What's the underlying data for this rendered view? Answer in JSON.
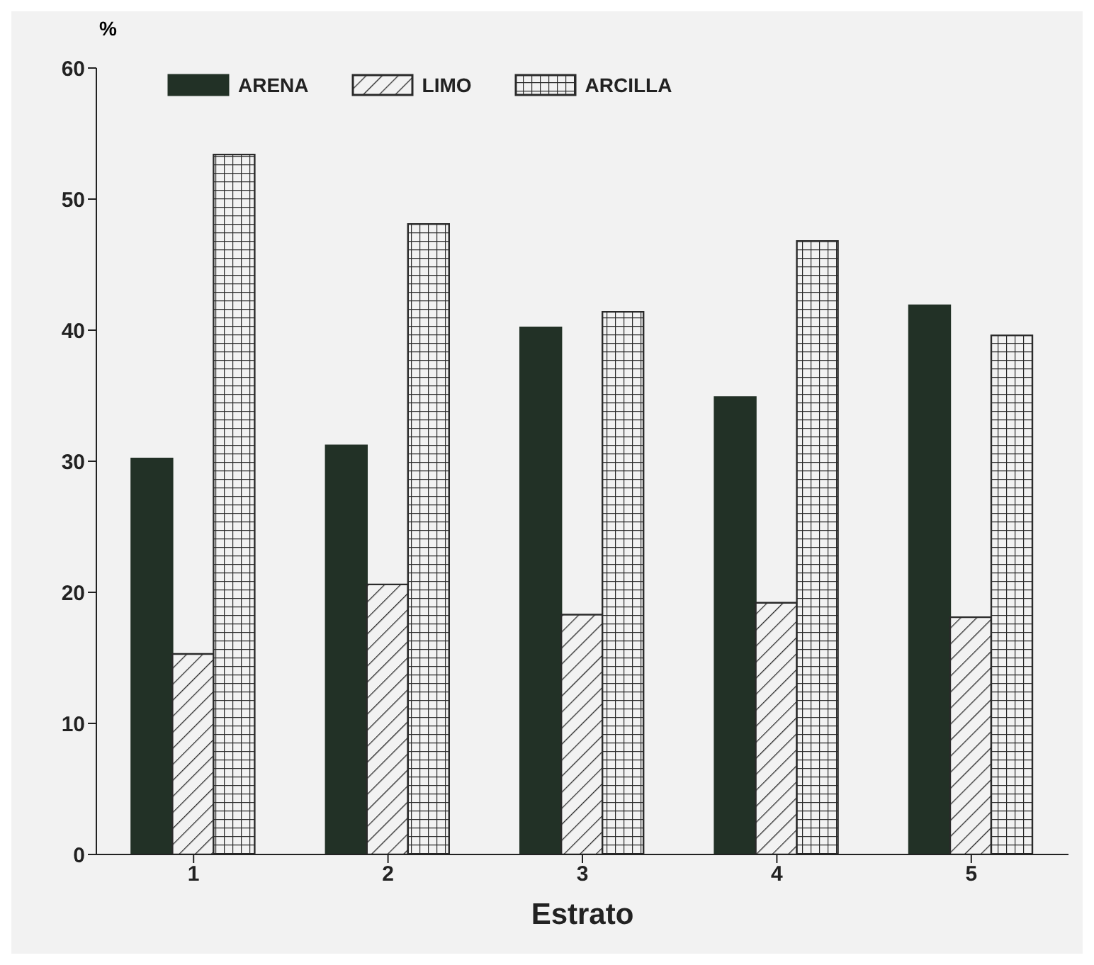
{
  "chart_data": {
    "type": "bar",
    "xlabel": "Estrato",
    "ylabel": "%",
    "categories": [
      "1",
      "2",
      "3",
      "4",
      "5"
    ],
    "series": [
      {
        "name": "ARENA",
        "color": "#223126",
        "values": [
          30.2,
          31.2,
          40.2,
          34.9,
          41.9
        ]
      },
      {
        "name": "LIMO",
        "color": "#2a2a2a",
        "values": [
          15.3,
          20.6,
          18.3,
          19.2,
          18.1
        ]
      },
      {
        "name": "ARCILLA",
        "color": "#2a2a2a",
        "values": [
          53.4,
          48.1,
          41.4,
          46.8,
          39.6
        ]
      }
    ],
    "ylim": [
      0,
      60
    ],
    "yticks": [
      0,
      10,
      20,
      30,
      40,
      50,
      60
    ],
    "grid": false,
    "legend": "top"
  }
}
